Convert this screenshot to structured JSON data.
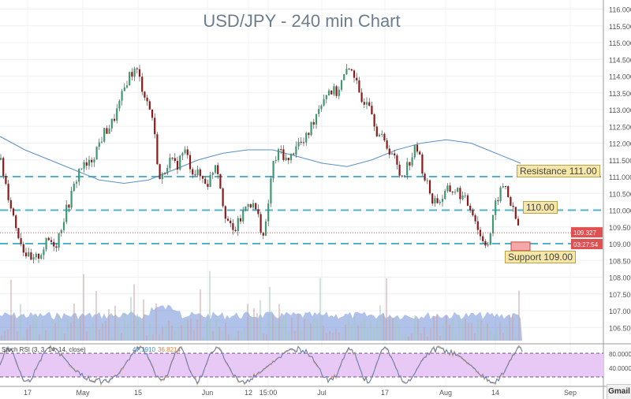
{
  "chart_data": {
    "type": "candlestick",
    "title": "USD/JPY - 240 min Chart",
    "ylim": [
      106.1,
      116.2
    ],
    "y_ticks": [
      "116.000",
      "115.500",
      "115.000",
      "114.500",
      "114.000",
      "113.500",
      "113.000",
      "112.500",
      "112.000",
      "111.500",
      "111.000",
      "110.500",
      "110.000",
      "109.500",
      "109.000",
      "108.500",
      "108.000",
      "107.500",
      "107.000",
      "106.500"
    ],
    "x_ticks": [
      "17",
      "May",
      "15",
      "Jun",
      "12",
      "15:00",
      "Jul",
      "17",
      "Aug",
      "14",
      "Sep"
    ],
    "price_path": [
      111.5,
      110.5,
      109.5,
      108.8,
      108.4,
      108.7,
      109.1,
      109.0,
      109.8,
      110.5,
      111.3,
      111.3,
      111.8,
      112.3,
      112.6,
      113.2,
      114.0,
      114.2,
      113.5,
      112.8,
      110.8,
      111.5,
      111.3,
      111.8,
      111.2,
      111.0,
      110.8,
      111.5,
      110.0,
      109.3,
      109.7,
      110.3,
      110.0,
      109.1,
      111.3,
      111.8,
      111.4,
      112.0,
      112.0,
      112.6,
      113.2,
      113.6,
      113.5,
      114.0,
      114.3,
      113.2,
      113.4,
      112.4,
      112.0,
      111.7,
      111.0,
      111.4,
      111.9,
      111.0,
      110.3,
      110.3,
      110.6,
      110.6,
      110.3,
      110.0,
      109.2,
      109.0,
      110.3,
      110.8,
      110.0,
      109.3
    ],
    "moving_average_path": [
      112.2,
      111.8,
      111.5,
      111.2,
      110.9,
      110.8,
      110.9,
      111.2,
      111.5,
      111.7,
      111.8,
      111.8,
      111.6,
      111.4,
      111.3,
      111.5,
      111.8,
      112.0,
      112.1,
      112.0,
      111.7,
      111.4
    ],
    "levels": [
      {
        "label": "Resistance 111.00",
        "value": 111.0
      },
      {
        "label": "110.00",
        "value": 110.0
      },
      {
        "label": "Support 109.00",
        "value": 109.0
      }
    ],
    "current_price": "109.327",
    "countdown": "03:27:54",
    "colors": {
      "up": "#3d9970",
      "down": "#8b1a1a",
      "level": "#4fb3c9",
      "ma": "#5b8fc7",
      "volume": "#6f8fd8",
      "stoch_band": "#e8c8f5"
    },
    "stoch": {
      "label": "Stoch RSI (3, 3, 14, 14, close)",
      "value1": "47.1910",
      "value2": "36.8214",
      "ticks": [
        "80.0000",
        "40.0000"
      ]
    }
  },
  "footer": {
    "gmail": "Gmail"
  }
}
